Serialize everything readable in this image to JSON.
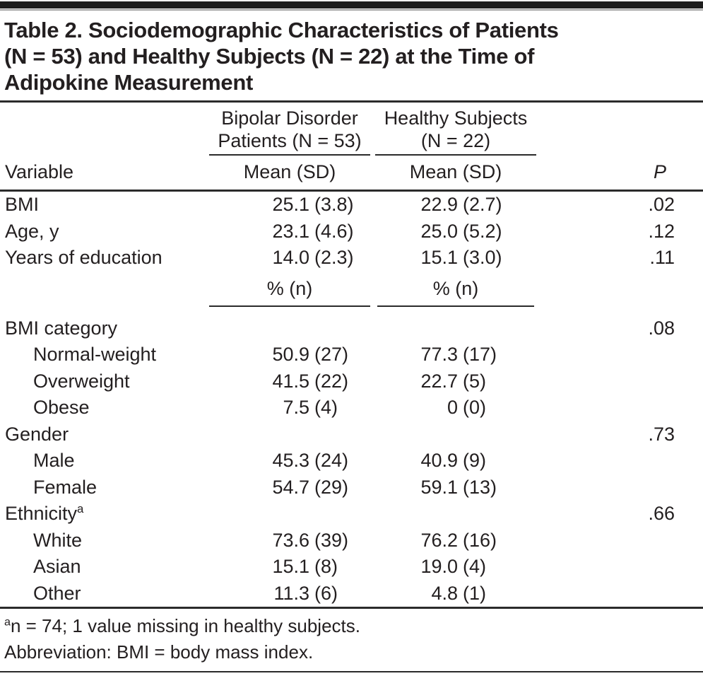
{
  "page": {
    "background": "#ffffff",
    "text_color": "#231f20",
    "rule_color": "#2b2b2b",
    "top_bar_color": "#1e1e1e"
  },
  "table": {
    "title_lines": [
      "Table 2. Sociodemographic Characteristics of Patients",
      "(N = 53) and Healthy Subjects (N = 22) at the Time of",
      "Adipokine Measurement"
    ],
    "header": {
      "variable_label": "Variable",
      "group1": {
        "line1": "Bipolar Disorder",
        "line2": "Patients (N = 53)",
        "measure": "Mean (SD)"
      },
      "group2": {
        "line1": "Healthy Subjects",
        "line2": "(N = 22)",
        "measure": "Mean (SD)"
      },
      "p_label": "P"
    },
    "subheader": {
      "group1": "% (n)",
      "group2": "% (n)"
    },
    "rows": [
      {
        "label": "BMI",
        "bp": "25.1",
        "bp_n": "(3.8)",
        "hs": "22.9",
        "hs_n": "(2.7)",
        "p": ".02"
      },
      {
        "label": "Age, y",
        "bp": "23.1",
        "bp_n": "(4.6)",
        "hs": "25.0",
        "hs_n": "(5.2)",
        "p": ".12"
      },
      {
        "label": "Years of education",
        "bp": "14.0",
        "bp_n": "(2.3)",
        "hs": "15.1",
        "hs_n": "(3.0)",
        "p": ".11"
      },
      {
        "label": "BMI category",
        "p": ".08"
      },
      {
        "label": "Normal-weight",
        "indent": true,
        "bp": "50.9",
        "bp_n": "(27)",
        "hs": "77.3",
        "hs_n": "(17)"
      },
      {
        "label": "Overweight",
        "indent": true,
        "bp": "41.5",
        "bp_n": "(22)",
        "hs": "22.7",
        "hs_n": "(5)"
      },
      {
        "label": "Obese",
        "indent": true,
        "bp": "7.5",
        "bp_n": "(4)",
        "hs": "0",
        "hs_n": "(0)"
      },
      {
        "label": "Gender",
        "p": ".73"
      },
      {
        "label": "Male",
        "indent": true,
        "bp": "45.3",
        "bp_n": "(24)",
        "hs": "40.9",
        "hs_n": "(9)"
      },
      {
        "label": "Female",
        "indent": true,
        "bp": "54.7",
        "bp_n": "(29)",
        "hs": "59.1",
        "hs_n": "(13)"
      },
      {
        "label": "Ethnicity",
        "sup": "a",
        "p": ".66"
      },
      {
        "label": "White",
        "indent": true,
        "bp": "73.6",
        "bp_n": "(39)",
        "hs": "76.2",
        "hs_n": "(16)"
      },
      {
        "label": "Asian",
        "indent": true,
        "bp": "15.1",
        "bp_n": "(8)",
        "hs": "19.0",
        "hs_n": "(4)"
      },
      {
        "label": "Other",
        "indent": true,
        "bp": "11.3",
        "bp_n": "(6)",
        "hs": "4.8",
        "hs_n": "(1)"
      }
    ],
    "footnotes": {
      "note1_sup": "a",
      "note1_text": "n = 74; 1 value missing in healthy subjects.",
      "note2_text": "Abbreviation: BMI = body mass index."
    }
  }
}
